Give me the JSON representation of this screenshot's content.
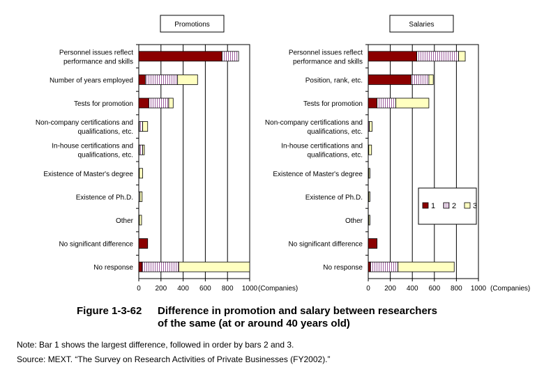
{
  "chart_data": [
    {
      "type": "bar",
      "orientation": "horizontal",
      "stacked": true,
      "title": "Promotions",
      "categories": [
        [
          "Personnel issues reflect",
          "performance and skills"
        ],
        [
          "Number of years employed"
        ],
        [
          "Tests for promotion"
        ],
        [
          "Non-company certifications and",
          "qualifications, etc."
        ],
        [
          "In-house certifications and",
          "qualifications, etc."
        ],
        [
          "Existence of Master's degree"
        ],
        [
          "Existence of Ph.D."
        ],
        [
          "Other"
        ],
        [
          "No significant difference"
        ],
        [
          "No response"
        ]
      ],
      "series": [
        {
          "name": "1",
          "values": [
            750,
            60,
            90,
            5,
            5,
            0,
            0,
            0,
            80,
            30
          ]
        },
        {
          "name": "2",
          "values": [
            150,
            290,
            180,
            30,
            30,
            5,
            10,
            5,
            0,
            330
          ]
        },
        {
          "name": "3",
          "values": [
            0,
            180,
            40,
            45,
            15,
            30,
            20,
            20,
            0,
            640
          ]
        }
      ],
      "xlim": [
        0,
        1000
      ],
      "ticks": [
        "0",
        "200",
        "400",
        "600",
        "800",
        "1000"
      ],
      "xlabel": "(Companies)",
      "grid": true
    },
    {
      "type": "bar",
      "orientation": "horizontal",
      "stacked": true,
      "title": "Salaries",
      "categories": [
        [
          "Personnel issues reflect",
          "performance and skills"
        ],
        [
          "Position, rank, etc."
        ],
        [
          "Tests for promotion"
        ],
        [
          "Non-company certifications and",
          "qualifications, etc."
        ],
        [
          "In-house certifications and",
          "qualifications, etc."
        ],
        [
          "Existence of Master's degree"
        ],
        [
          "Existence of Ph.D."
        ],
        [
          "Other"
        ],
        [
          "No significant difference"
        ],
        [
          "No response"
        ]
      ],
      "series": [
        {
          "name": "1",
          "values": [
            440,
            390,
            80,
            0,
            0,
            0,
            0,
            0,
            80,
            20
          ]
        },
        {
          "name": "2",
          "values": [
            380,
            160,
            170,
            10,
            5,
            5,
            5,
            5,
            0,
            250
          ]
        },
        {
          "name": "3",
          "values": [
            60,
            40,
            300,
            25,
            25,
            10,
            10,
            10,
            0,
            510
          ]
        }
      ],
      "xlim": [
        0,
        1000
      ],
      "ticks": [
        "0",
        "200",
        "400",
        "600",
        "800",
        "1000"
      ],
      "xlabel": "(Companies)",
      "grid": true,
      "legend": "right"
    }
  ],
  "colors": {
    "series1": "#8b0000",
    "series2": "#b080b0",
    "series3": "#ffffc0"
  },
  "caption": {
    "number": "Figure 1-3-62",
    "line1": "Difference in promotion and salary between researchers",
    "line2": "of the same (at or around 40 years old)"
  },
  "note": "Note: Bar 1 shows the largest difference, followed in order by bars 2 and 3.",
  "source": "Source: MEXT. “The Survey on Research Activities of Private Businesses (FY2002).”"
}
